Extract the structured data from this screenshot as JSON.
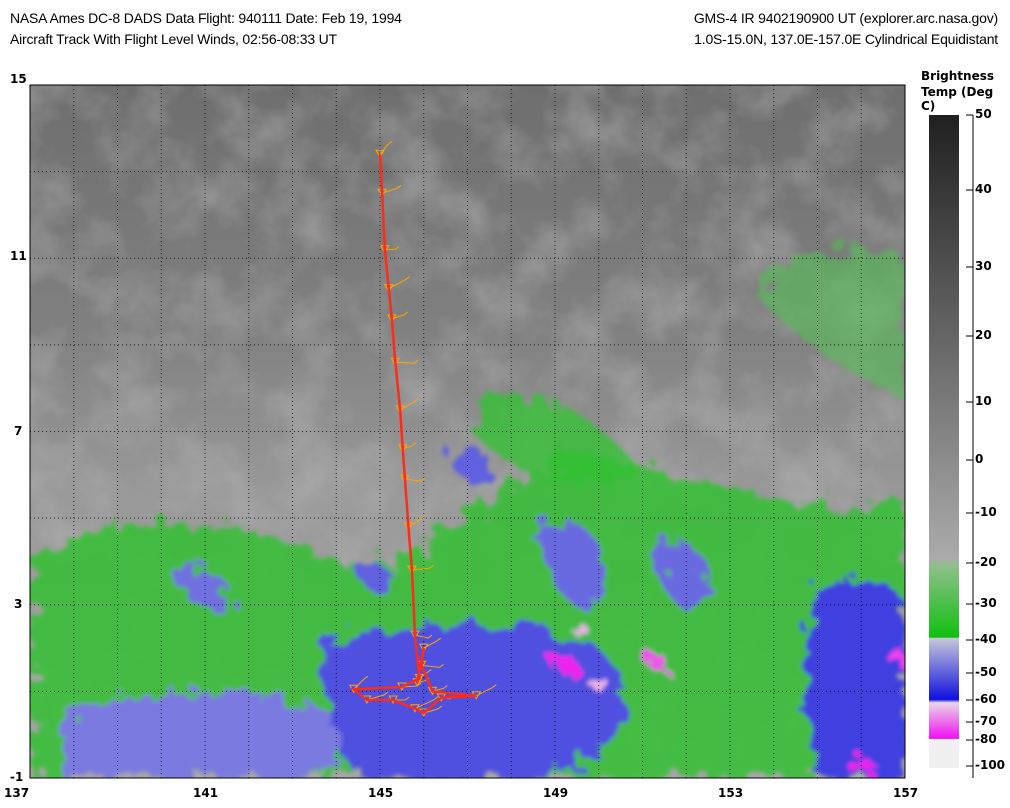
{
  "header": {
    "title_left_1": "NASA Ames DC-8 DADS Data  Flight: 940111  Date: Feb 19, 1994",
    "title_left_2": "Aircraft Track With Flight Level Winds, 02:56-08:33 UT",
    "title_right_1": "GMS-4 IR 9402190900 UT (explorer.arc.nasa.gov)",
    "title_right_2": "1.0S-15.0N, 137.0E-157.0E Cylindrical Equidistant"
  },
  "map": {
    "lon_range": [
      137,
      157
    ],
    "lat_range": [
      -1,
      15
    ],
    "lon_ticks": [
      "137",
      "141",
      "145",
      "149",
      "153",
      "157"
    ],
    "lat_ticks": [
      "15",
      "11",
      "7",
      "3",
      "-1"
    ],
    "track_color": "#ff2a1a",
    "wind_color": "#ffa500",
    "track": [
      [
        145.0,
        13.4
      ],
      [
        145.05,
        12.5
      ],
      [
        145.11,
        11.2
      ],
      [
        145.2,
        10.3
      ],
      [
        145.27,
        9.6
      ],
      [
        145.35,
        8.6
      ],
      [
        145.46,
        7.5
      ],
      [
        145.52,
        6.6
      ],
      [
        145.57,
        5.9
      ],
      [
        145.65,
        4.8
      ],
      [
        145.73,
        3.8
      ],
      [
        145.8,
        2.3
      ],
      [
        145.9,
        1.3
      ],
      [
        145.5,
        1.1
      ],
      [
        144.4,
        1.05
      ],
      [
        144.7,
        0.8
      ],
      [
        145.3,
        0.8
      ],
      [
        145.8,
        0.6
      ],
      [
        146.0,
        0.5
      ],
      [
        146.4,
        0.85
      ],
      [
        147.2,
        0.9
      ],
      [
        146.2,
        1.0
      ],
      [
        145.95,
        1.6
      ],
      [
        146.0,
        2.0
      ],
      [
        145.85,
        1.2
      ]
    ]
  },
  "colorbar": {
    "title_1": "Brightness",
    "title_2": "Temp (Deg C)",
    "ticks": [
      "50",
      "40",
      "30",
      "20",
      "10",
      "0",
      "-10",
      "-20",
      "-30",
      "-40",
      "-50",
      "-60",
      "-70",
      "-80",
      "-100"
    ]
  }
}
